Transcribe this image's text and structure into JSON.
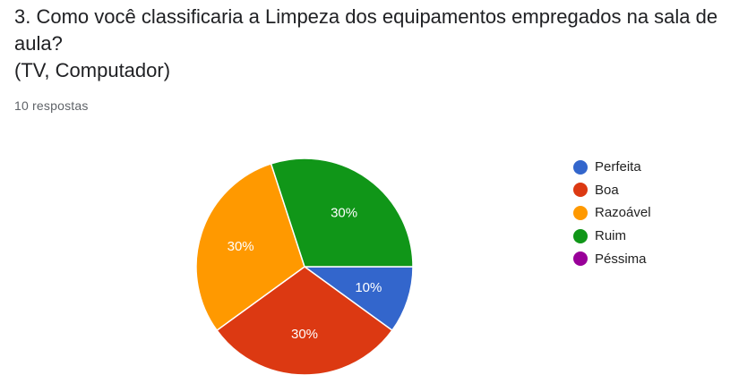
{
  "question": {
    "line1": "3. Como você classificaria a Limpeza dos equipamentos empregados na sala de",
    "line2": "aula?",
    "line3": "(TV, Computador)"
  },
  "responses": "10 respostas",
  "chart_data": {
    "type": "pie",
    "categories": [
      "Perfeita",
      "Boa",
      "Razoável",
      "Ruim",
      "Péssima"
    ],
    "values": [
      1,
      3,
      3,
      3,
      0
    ],
    "percent_labels": [
      "10%",
      "30%",
      "30%",
      "30%",
      "0%"
    ],
    "colors": [
      "#3366cc",
      "#dc3912",
      "#ff9900",
      "#109618",
      "#990099"
    ],
    "legend_position": "right",
    "start_angle_deg": 90,
    "direction": "clockwise"
  }
}
